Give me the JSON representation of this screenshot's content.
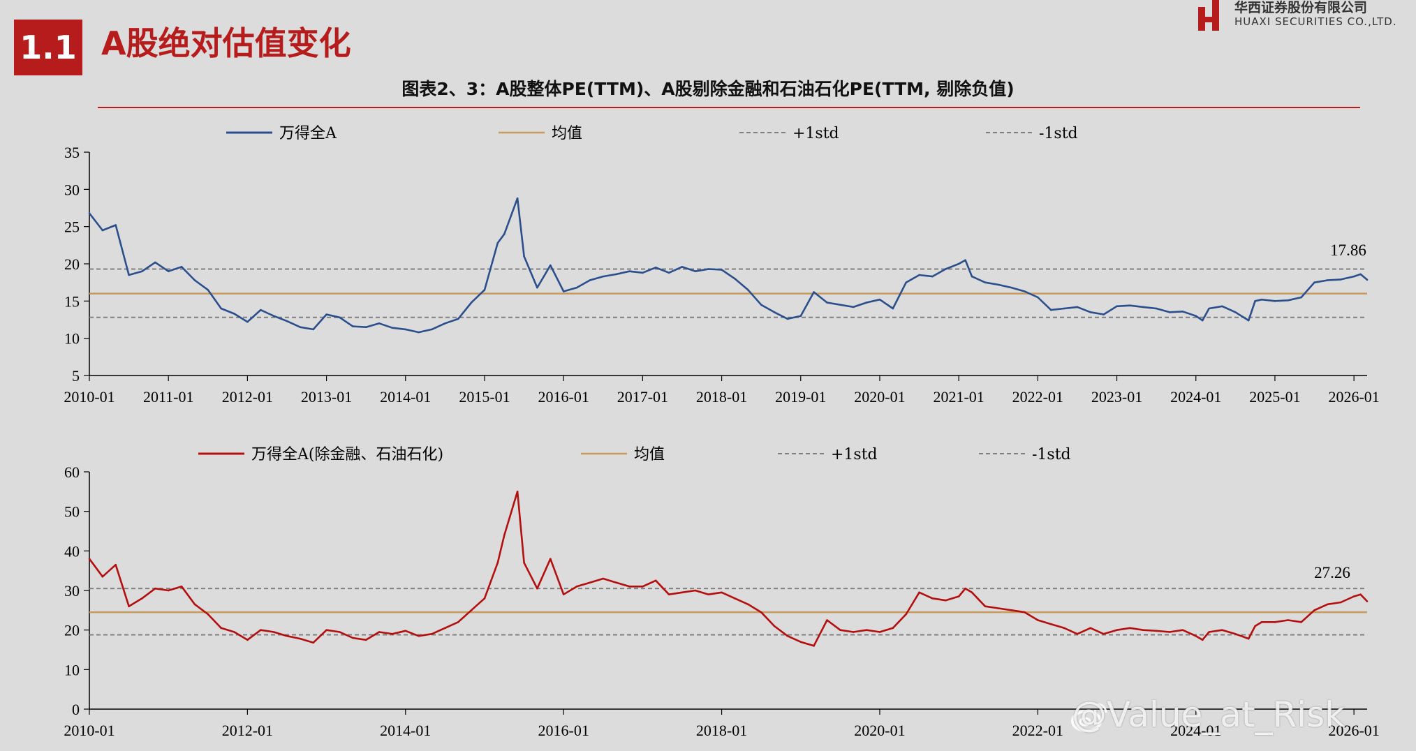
{
  "header": {
    "section_number": "1.1",
    "section_title": "A股绝对估值变化",
    "company_cn": "华西证券股份有限公司",
    "company_en": "HUAXI SECURITIES CO.,LTD.",
    "figure_title": "图表2、3：A股整体PE(TTM)、A股剔除金融和石油石化PE(TTM, 剔除负值)"
  },
  "watermark": {
    "text": "@Value_at_Risk"
  },
  "colors": {
    "accent": "#b71c1c",
    "blue": "#2b4f8c",
    "red": "#b40f0f",
    "mean": "#c79a5e",
    "std": "#808080",
    "background": "#dcdcdc"
  },
  "chart_data": [
    {
      "type": "line",
      "title": "",
      "xlabel": "",
      "ylabel": "",
      "ylim": [
        5,
        35
      ],
      "yticks": [
        5,
        10,
        15,
        20,
        25,
        30,
        35
      ],
      "x_range": [
        "2010-01",
        "2026-03"
      ],
      "x_tick_labels": [
        "2010-01",
        "2011-01",
        "2012-01",
        "2013-01",
        "2014-01",
        "2015-01",
        "2016-01",
        "2017-01",
        "2018-01",
        "2019-01",
        "2020-01",
        "2021-01",
        "2022-01",
        "2023-01",
        "2024-01",
        "2025-01",
        "2026-01"
      ],
      "legend": {
        "placement": "top",
        "entries": [
          "万得全A",
          "均值",
          "+1std",
          "-1std"
        ]
      },
      "reference_lines": {
        "mean": 16.0,
        "plus_1std": 19.3,
        "minus_1std": 12.8
      },
      "last_label": "17.86",
      "series": [
        {
          "name": "万得全A",
          "x": [
            "2010-01",
            "2010-03",
            "2010-05",
            "2010-07",
            "2010-09",
            "2010-11",
            "2011-01",
            "2011-03",
            "2011-05",
            "2011-07",
            "2011-09",
            "2011-11",
            "2012-01",
            "2012-03",
            "2012-05",
            "2012-07",
            "2012-09",
            "2012-11",
            "2013-01",
            "2013-03",
            "2013-05",
            "2013-07",
            "2013-09",
            "2013-11",
            "2014-01",
            "2014-03",
            "2014-05",
            "2014-07",
            "2014-09",
            "2014-11",
            "2015-01",
            "2015-03",
            "2015-04",
            "2015-06",
            "2015-07",
            "2015-09",
            "2015-11",
            "2016-01",
            "2016-03",
            "2016-05",
            "2016-07",
            "2016-09",
            "2016-11",
            "2017-01",
            "2017-03",
            "2017-05",
            "2017-07",
            "2017-09",
            "2017-11",
            "2018-01",
            "2018-03",
            "2018-05",
            "2018-07",
            "2018-09",
            "2018-11",
            "2019-01",
            "2019-03",
            "2019-05",
            "2019-07",
            "2019-09",
            "2019-11",
            "2020-01",
            "2020-03",
            "2020-05",
            "2020-07",
            "2020-09",
            "2020-11",
            "2021-01",
            "2021-02",
            "2021-03",
            "2021-05",
            "2021-07",
            "2021-09",
            "2021-11",
            "2022-01",
            "2022-03",
            "2022-05",
            "2022-07",
            "2022-09",
            "2022-11",
            "2023-01",
            "2023-03",
            "2023-05",
            "2023-07",
            "2023-09",
            "2023-11",
            "2024-01",
            "2024-02",
            "2024-03",
            "2024-05",
            "2024-07",
            "2024-09",
            "2024-10",
            "2024-11",
            "2025-01",
            "2025-03",
            "2025-05",
            "2025-07",
            "2025-09",
            "2025-11",
            "2026-01",
            "2026-02",
            "2026-03"
          ],
          "y": [
            26.8,
            24.5,
            25.2,
            18.5,
            19.0,
            20.2,
            19.0,
            19.6,
            17.8,
            16.5,
            14.0,
            13.3,
            12.2,
            13.8,
            13.0,
            12.3,
            11.5,
            11.2,
            13.2,
            12.8,
            11.6,
            11.5,
            12.0,
            11.4,
            11.2,
            10.8,
            11.2,
            12.0,
            12.6,
            14.8,
            16.5,
            22.8,
            24.0,
            28.8,
            21.0,
            16.8,
            19.8,
            16.3,
            16.8,
            17.8,
            18.3,
            18.6,
            19.0,
            18.8,
            19.5,
            18.8,
            19.6,
            19.0,
            19.3,
            19.2,
            18.0,
            16.5,
            14.5,
            13.5,
            12.6,
            13.0,
            16.2,
            14.8,
            14.5,
            14.2,
            14.8,
            15.2,
            14.0,
            17.5,
            18.5,
            18.3,
            19.3,
            20.0,
            20.5,
            18.3,
            17.5,
            17.2,
            16.8,
            16.3,
            15.5,
            13.8,
            14.0,
            14.2,
            13.5,
            13.2,
            14.3,
            14.4,
            14.2,
            14.0,
            13.5,
            13.6,
            13.0,
            12.4,
            14.0,
            14.3,
            13.5,
            12.4,
            15.0,
            15.2,
            15.0,
            15.1,
            15.5,
            17.5,
            17.8,
            17.9,
            18.3,
            18.6,
            17.86
          ]
        }
      ]
    },
    {
      "type": "line",
      "title": "",
      "xlabel": "",
      "ylabel": "",
      "ylim": [
        0,
        60
      ],
      "yticks": [
        0,
        10,
        20,
        30,
        40,
        50,
        60
      ],
      "x_range": [
        "2010-01",
        "2026-03"
      ],
      "x_tick_labels": [
        "2010-01",
        "2012-01",
        "2014-01",
        "2016-01",
        "2018-01",
        "2020-01",
        "2022-01",
        "2024-01",
        "2026-01"
      ],
      "legend": {
        "placement": "top",
        "entries": [
          "万得全A(除金融、石油石化)",
          "均值",
          "+1std",
          "-1std"
        ]
      },
      "reference_lines": {
        "mean": 24.5,
        "plus_1std": 30.5,
        "minus_1std": 18.8
      },
      "last_label": "27.26",
      "series": [
        {
          "name": "万得全A(除金融、石油石化)",
          "x": [
            "2010-01",
            "2010-03",
            "2010-05",
            "2010-07",
            "2010-09",
            "2010-11",
            "2011-01",
            "2011-03",
            "2011-05",
            "2011-07",
            "2011-09",
            "2011-11",
            "2012-01",
            "2012-03",
            "2012-05",
            "2012-07",
            "2012-09",
            "2012-11",
            "2013-01",
            "2013-03",
            "2013-05",
            "2013-07",
            "2013-09",
            "2013-11",
            "2014-01",
            "2014-03",
            "2014-05",
            "2014-07",
            "2014-09",
            "2014-11",
            "2015-01",
            "2015-03",
            "2015-04",
            "2015-06",
            "2015-07",
            "2015-09",
            "2015-11",
            "2016-01",
            "2016-03",
            "2016-05",
            "2016-07",
            "2016-09",
            "2016-11",
            "2017-01",
            "2017-03",
            "2017-05",
            "2017-07",
            "2017-09",
            "2017-11",
            "2018-01",
            "2018-03",
            "2018-05",
            "2018-07",
            "2018-09",
            "2018-11",
            "2019-01",
            "2019-03",
            "2019-05",
            "2019-07",
            "2019-09",
            "2019-11",
            "2020-01",
            "2020-03",
            "2020-05",
            "2020-07",
            "2020-09",
            "2020-11",
            "2021-01",
            "2021-02",
            "2021-03",
            "2021-05",
            "2021-07",
            "2021-09",
            "2021-11",
            "2022-01",
            "2022-03",
            "2022-05",
            "2022-07",
            "2022-09",
            "2022-11",
            "2023-01",
            "2023-03",
            "2023-05",
            "2023-07",
            "2023-09",
            "2023-11",
            "2024-01",
            "2024-02",
            "2024-03",
            "2024-05",
            "2024-07",
            "2024-09",
            "2024-10",
            "2024-11",
            "2025-01",
            "2025-03",
            "2025-05",
            "2025-07",
            "2025-09",
            "2025-11",
            "2026-01",
            "2026-02",
            "2026-03"
          ],
          "y": [
            38.0,
            33.5,
            36.5,
            26.0,
            28.0,
            30.5,
            30.0,
            31.0,
            26.5,
            24.0,
            20.5,
            19.5,
            17.5,
            20.0,
            19.5,
            18.5,
            17.8,
            16.8,
            20.0,
            19.5,
            18.0,
            17.5,
            19.5,
            19.0,
            19.8,
            18.5,
            19.0,
            20.5,
            22.0,
            25.0,
            28.0,
            37.0,
            44.0,
            55.0,
            37.0,
            30.5,
            38.0,
            29.0,
            31.0,
            32.0,
            33.0,
            32.0,
            31.0,
            31.0,
            32.5,
            29.0,
            29.5,
            30.0,
            29.0,
            29.5,
            28.0,
            26.5,
            24.5,
            21.0,
            18.5,
            17.0,
            16.0,
            22.5,
            20.0,
            19.5,
            20.0,
            19.5,
            20.5,
            24.0,
            29.5,
            28.0,
            27.5,
            28.5,
            30.5,
            29.5,
            26.0,
            25.5,
            25.0,
            24.5,
            22.5,
            21.5,
            20.5,
            19.0,
            20.5,
            19.0,
            20.0,
            20.5,
            20.0,
            19.8,
            19.5,
            20.0,
            18.5,
            17.5,
            19.5,
            20.0,
            19.0,
            17.8,
            21.0,
            22.0,
            22.0,
            22.5,
            22.0,
            25.0,
            26.5,
            27.0,
            28.5,
            29.0,
            27.26
          ]
        }
      ]
    }
  ]
}
